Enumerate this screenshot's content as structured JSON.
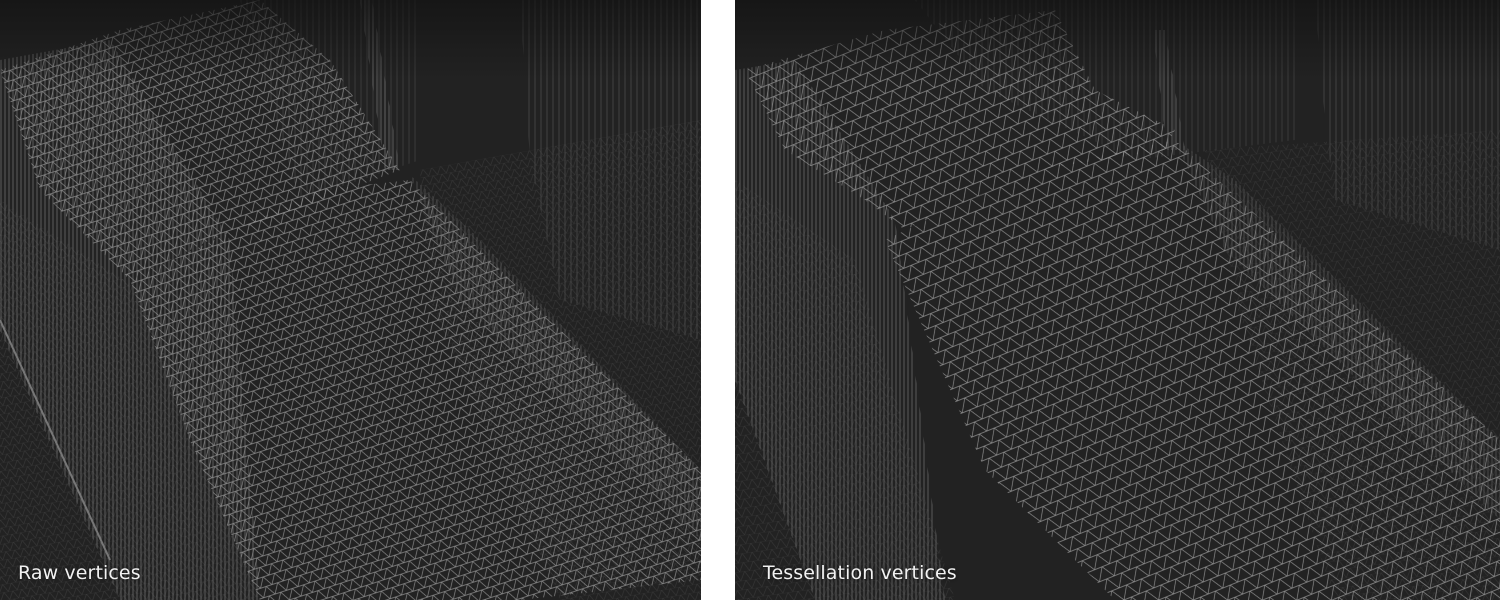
{
  "panels": [
    {
      "caption": "Raw vertices"
    },
    {
      "caption": "Tessellation vertices"
    }
  ]
}
